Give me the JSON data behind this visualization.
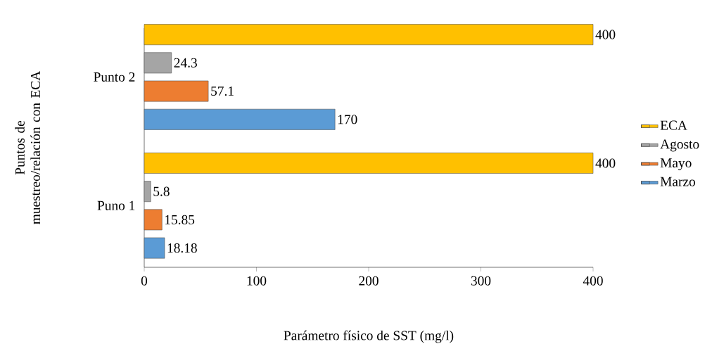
{
  "chart_data": {
    "type": "bar",
    "orientation": "horizontal",
    "xlabel": "Parámetro físico de SST (mg/l)",
    "ylabel": "Puntos de muestreo/relación con ECA",
    "categories": [
      "Punto 2",
      "Puno 1"
    ],
    "series": [
      {
        "name": "ECA",
        "color": "#ffc000",
        "values": [
          400,
          400
        ]
      },
      {
        "name": "Agosto",
        "color": "#a5a5a5",
        "values": [
          24.3,
          5.8
        ]
      },
      {
        "name": "Mayo",
        "color": "#ed7d31",
        "values": [
          57.1,
          15.85
        ]
      },
      {
        "name": "Marzo",
        "color": "#5b9bd5",
        "values": [
          170,
          18.18
        ]
      }
    ],
    "xlim": [
      0,
      400
    ],
    "xticks": [
      0,
      100,
      200,
      300,
      400
    ],
    "data_labels": true,
    "legend": "right"
  }
}
